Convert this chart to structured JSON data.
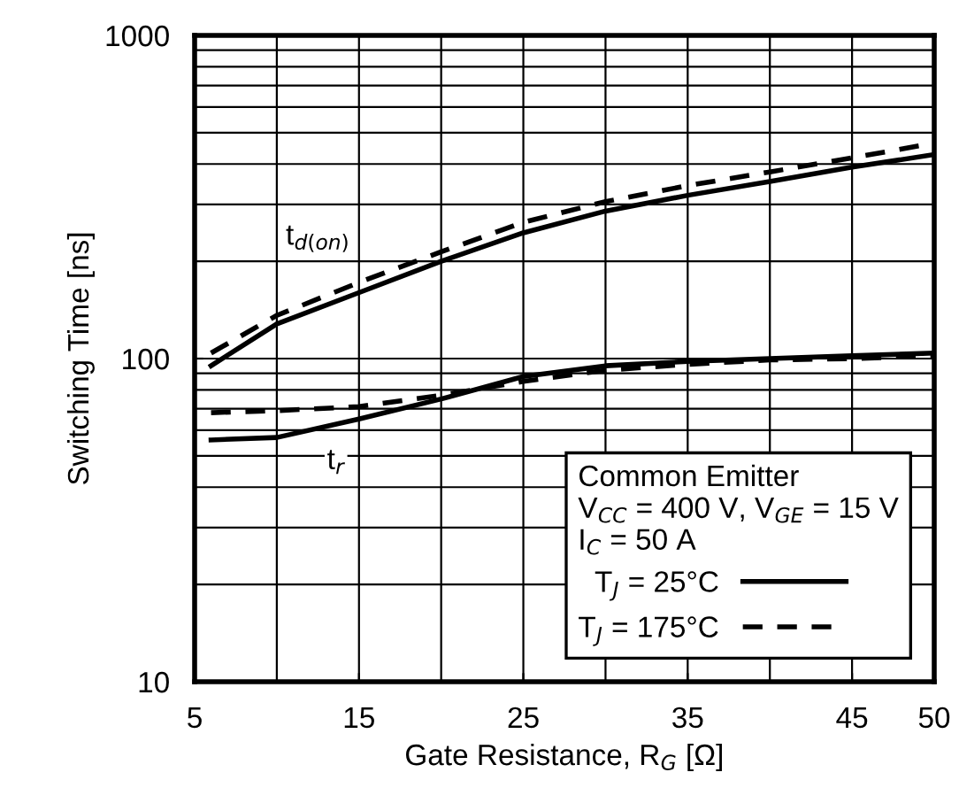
{
  "chart_data": {
    "type": "line",
    "xlabel": "Gate Resistance, R$_{G}$ [Ω]",
    "ylabel": "Switching Time [ns]",
    "legend_title": "Common Emitter\nV$_{CC}$ = 400 V, V$_{GE}$ = 15 V\nI$_{C}$ = 50 A",
    "x": [
      6,
      10,
      15,
      20,
      25,
      30,
      35,
      40,
      45,
      50
    ],
    "series": [
      {
        "name": "T$_{J}$ = 25°C",
        "color": "#000000",
        "line_style": "solid",
        "values": [
          95,
          128,
          160,
          200,
          245,
          286,
          320,
          353,
          391,
          428
        ]
      },
      {
        "name": "T$_{J}$ = 175°C",
        "color": "#000000",
        "line_style": "dashed",
        "values": [
          104,
          136,
          172,
          214,
          264,
          306,
          343,
          378,
          418,
          464
        ]
      },
      {
        "color": "#000000",
        "line_style": "solid",
        "values": [
          56,
          57,
          65,
          75,
          88,
          95,
          98,
          100,
          102,
          104
        ]
      },
      {
        "color": "#000000",
        "line_style": "dashed",
        "values": [
          68,
          69,
          71,
          77,
          85,
          92,
          96,
          99,
          100,
          102
        ]
      }
    ],
    "annotations": [
      {
        "text": "t$_{d(on)}$",
        "x": 12.5,
        "y": 235
      },
      {
        "text": "t$_{r}$",
        "x": 13.6,
        "y": 48
      }
    ],
    "log": "y",
    "xlim": [
      5,
      50
    ],
    "ylim": [
      10,
      1000
    ],
    "xticks": [
      5,
      15,
      25,
      35,
      45,
      50
    ],
    "yticks": [
      10,
      100,
      1000
    ],
    "grid": true,
    "legend": "bottom right",
    "marker": "none"
  }
}
